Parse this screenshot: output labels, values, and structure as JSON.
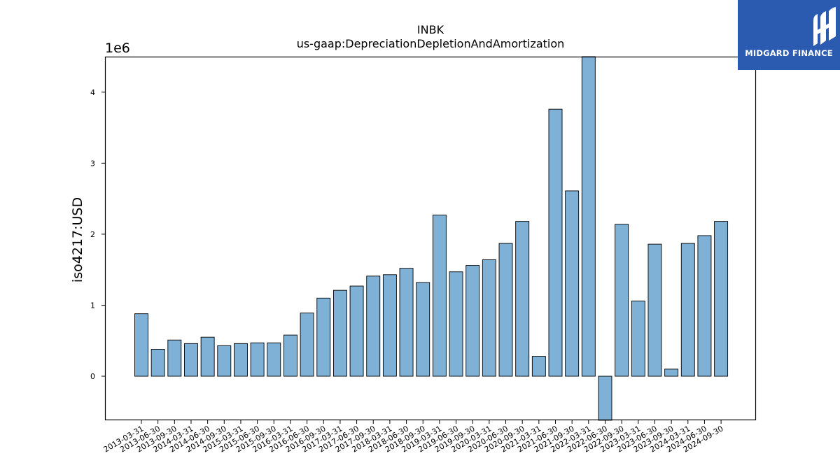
{
  "logo": {
    "text": "MIDGARD FINANCE"
  },
  "chart_data": {
    "type": "bar",
    "title": "INBK",
    "subtitle": "us-gaap:DepreciationDepletionAndAmortization",
    "ylabel": "iso4217:USD",
    "xlabel": "",
    "y_multiplier_label": "1e6",
    "ylim": [
      -620000,
      4500000
    ],
    "yticks": [
      0,
      1,
      2,
      3,
      4
    ],
    "grid": false,
    "bar_color": "#7fb0d5",
    "edge_color": "#000000",
    "categories": [
      "2013-03-31",
      "2013-06-30",
      "2013-09-30",
      "2014-03-31",
      "2014-06-30",
      "2014-09-30",
      "2015-03-31",
      "2015-06-30",
      "2015-09-30",
      "2016-03-31",
      "2016-06-30",
      "2016-09-30",
      "2017-03-31",
      "2017-06-30",
      "2017-09-30",
      "2018-03-31",
      "2018-06-30",
      "2018-09-30",
      "2019-03-31",
      "2019-06-30",
      "2019-09-30",
      "2020-03-31",
      "2020-06-30",
      "2020-09-30",
      "2021-03-31",
      "2021-06-30",
      "2021-09-30",
      "2022-03-31",
      "2022-06-30",
      "2022-09-30",
      "2023-03-31",
      "2023-06-30",
      "2023-09-30",
      "2024-03-31",
      "2024-06-30",
      "2024-09-30"
    ],
    "values": [
      880000,
      380000,
      510000,
      460000,
      550000,
      430000,
      460000,
      470000,
      470000,
      580000,
      890000,
      1100000,
      1210000,
      1270000,
      1410000,
      1430000,
      1520000,
      1320000,
      2270000,
      1470000,
      1560000,
      1640000,
      1870000,
      2180000,
      280000,
      3760000,
      2610000,
      4500000,
      -620000,
      2140000,
      1060000,
      1860000,
      100000,
      1870000,
      1980000,
      2180000
    ]
  }
}
